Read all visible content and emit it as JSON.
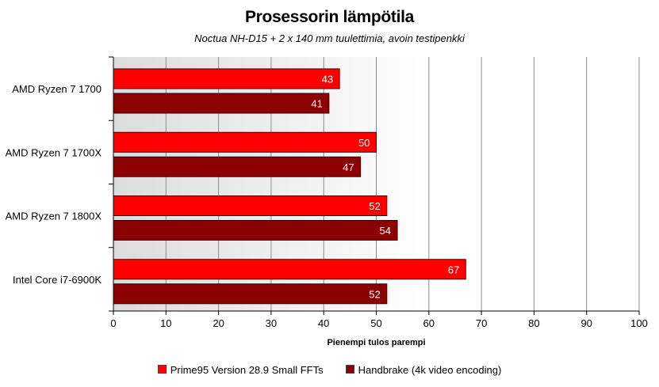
{
  "chart_data": {
    "type": "bar",
    "orientation": "horizontal",
    "title": "Prosessorin lämpötila",
    "subtitle": "Noctua NH-D15 + 2 x 140 mm tuulettimia, avoin testipenkki",
    "xlabel": "Pienempi tulos parempi",
    "ylabel": "",
    "xlim": [
      0,
      100
    ],
    "ticks": [
      0,
      10,
      20,
      30,
      40,
      50,
      60,
      70,
      80,
      90,
      100
    ],
    "grid": true,
    "legend_position": "bottom",
    "categories": [
      "AMD Ryzen 7 1700",
      "AMD Ryzen 7 1700X",
      "AMD Ryzen 7 1800X",
      "Intel Core i7-6900K"
    ],
    "series": [
      {
        "name": "Prime95 Version 28.9 Small FFTs",
        "color": "#ff0000",
        "values": [
          43,
          50,
          52,
          67
        ]
      },
      {
        "name": "Handbrake (4k video encoding)",
        "color": "#8b0000",
        "values": [
          41,
          47,
          54,
          52
        ]
      }
    ]
  }
}
